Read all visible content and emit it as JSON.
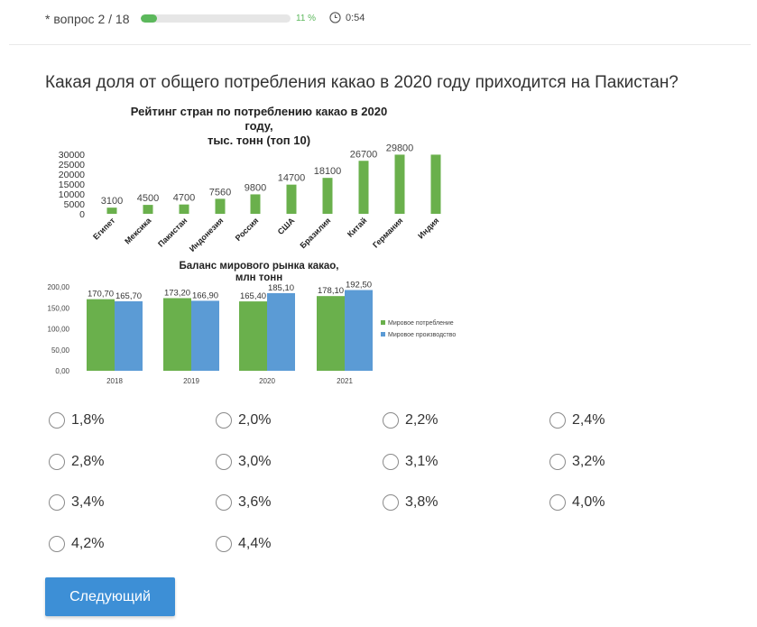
{
  "header": {
    "counter": "* вопрос 2 / 18",
    "progress_percent": 11,
    "progress_text": "11 %",
    "timer": "0:54",
    "timer_icon": "clock-icon"
  },
  "question": "Какая доля от общего потребления какао в 2020 году приходится на Пакистан?",
  "chart_data": [
    {
      "type": "bar",
      "title_lines": [
        "Рейтинг стран по потреблению какао в 2020",
        "году,",
        "тыс. тонн (топ 10)"
      ],
      "categories": [
        "Египет",
        "Мексика",
        "Пакистан",
        "Индонезия",
        "Россия",
        "США",
        "Бразилия",
        "Китай",
        "Германия",
        "Индия"
      ],
      "values": [
        3100,
        4500,
        4700,
        7560,
        9800,
        14700,
        18100,
        26700,
        29800,
        29800
      ],
      "value_labels": [
        "3100",
        "4500",
        "4700",
        "7560",
        "9800",
        "14700",
        "18100",
        "26700",
        "29800",
        ""
      ],
      "ylim": [
        0,
        30000
      ],
      "yticks": [
        "0",
        "5000",
        "10000",
        "15000",
        "20000",
        "25000",
        "30000"
      ],
      "color": "#6ab04c"
    },
    {
      "type": "bar",
      "title_lines": [
        "Баланс мирового рынка какао,",
        "млн тонн"
      ],
      "categories": [
        "2018",
        "2019",
        "2020",
        "2021"
      ],
      "series": [
        {
          "name": "Мировое потребление",
          "values": [
            170.7,
            173.2,
            165.4,
            178.1
          ],
          "labels": [
            "170,70",
            "173,20",
            "165,40",
            "178,10"
          ],
          "color": "#6ab04c"
        },
        {
          "name": "Мировое производство",
          "values": [
            165.7,
            166.9,
            185.1,
            192.5
          ],
          "labels": [
            "165,70",
            "166,90",
            "185,10",
            "192,50"
          ],
          "color": "#5b9bd5"
        }
      ],
      "ylim": [
        0,
        200
      ],
      "yticks": [
        "0,00",
        "50,00",
        "100,00",
        "150,00",
        "200,00"
      ]
    }
  ],
  "options": [
    "1,8%",
    "2,0%",
    "2,2%",
    "2,4%",
    "2,8%",
    "3,0%",
    "3,1%",
    "3,2%",
    "3,4%",
    "3,6%",
    "3,8%",
    "4,0%",
    "4,2%",
    "4,4%"
  ],
  "next_button": "Следующий"
}
